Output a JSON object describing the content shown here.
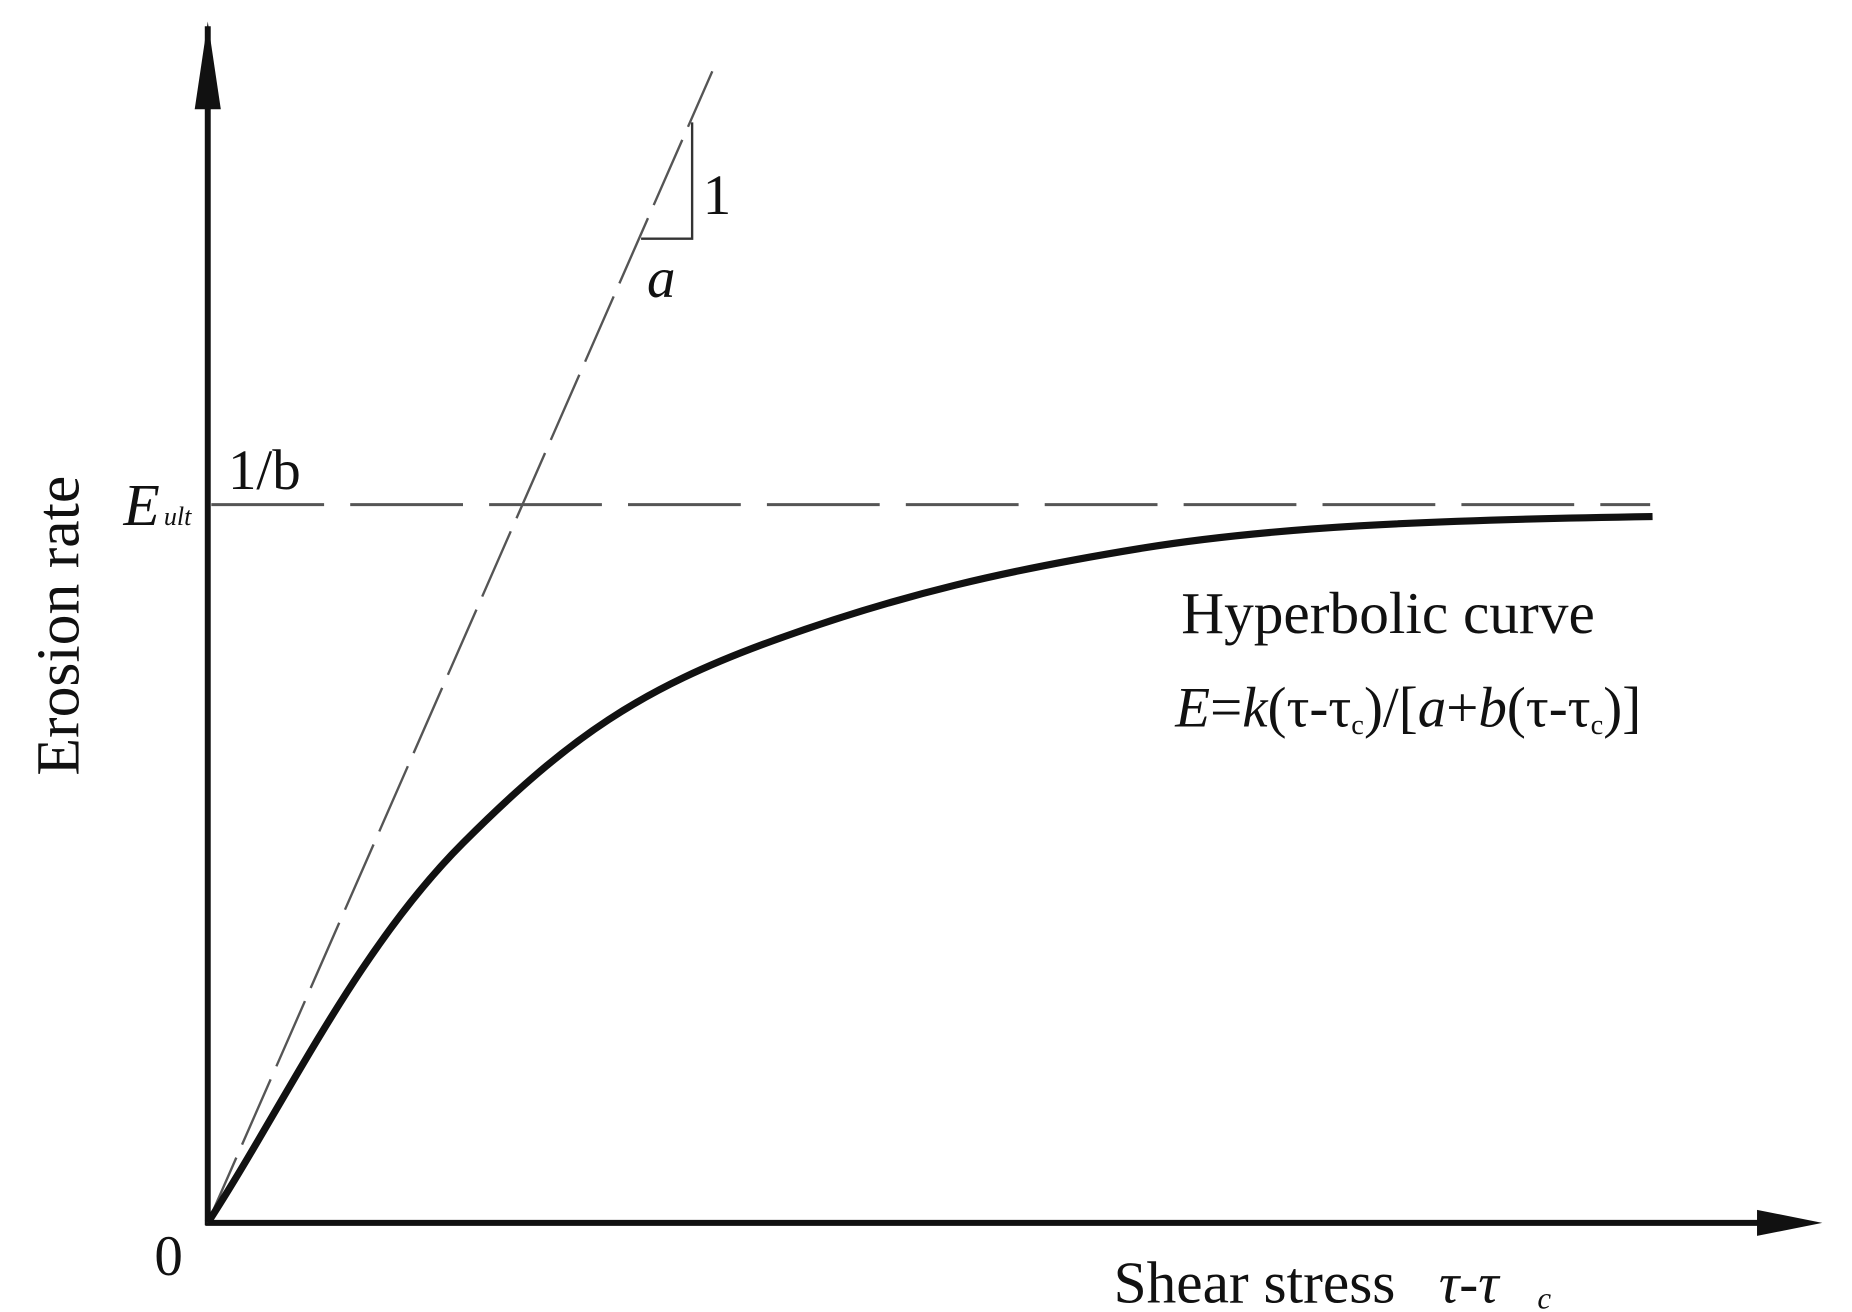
{
  "axes": {
    "y_label": "Erosion rate",
    "x_label": "Shear stress",
    "x_label_symbol": "τ-τ",
    "x_label_subscript": "c",
    "origin": "0"
  },
  "asymptote": {
    "symbol": "E",
    "subscript": "ult",
    "label": "1/b"
  },
  "slope_triangle": {
    "rise": "1",
    "run": "a"
  },
  "curve": {
    "name": "Hyperbolic curve",
    "formula": [
      "E",
      "=",
      "k",
      "(τ-τ",
      "c",
      ")/[",
      "a",
      "+",
      "b",
      "(τ-τ",
      "c",
      ")]"
    ]
  }
}
